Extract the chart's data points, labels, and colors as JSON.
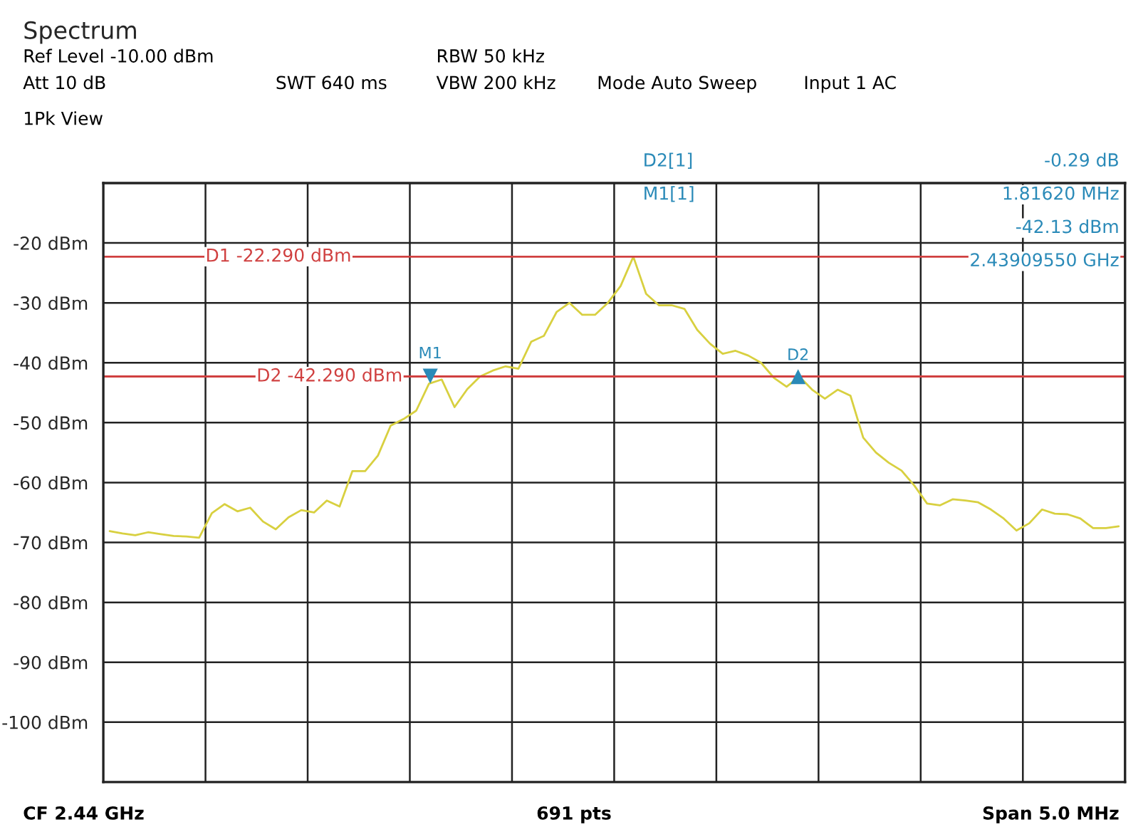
{
  "chart_data": {
    "type": "line",
    "title": "Spectrum",
    "annotations": [
      "Ref Level -10.00 dBm",
      "Att 10 dB",
      "SWT 640 ms",
      "RBW 50 kHz",
      "VBW 200 kHz",
      "Mode Auto Sweep",
      "Input 1 AC",
      "1Pk View",
      {
        "text": "M1",
        "y": -42.13
      },
      {
        "text": "D2",
        "y": -42.42
      },
      "D2[1]",
      "-0.29 dB",
      "1.81620 MHz",
      "M1[1]",
      "-42.13 dBm",
      "2.43909550 GHz",
      "CF 2.44 GHz",
      "691 pts",
      "Span 5.0 MHz"
    ],
    "categories": [
      null,
      null,
      null,
      null,
      null,
      null,
      null,
      null,
      null,
      null,
      null,
      null,
      null,
      null,
      null,
      null,
      null,
      null,
      null,
      null,
      null,
      null,
      null,
      null,
      null,
      null,
      null,
      null,
      null,
      null,
      null,
      null,
      null,
      null,
      null,
      null,
      null,
      null,
      null,
      null,
      null,
      null,
      null,
      null,
      null,
      null,
      null,
      null,
      null,
      null,
      null,
      null,
      null,
      null,
      null,
      null,
      null,
      null,
      null,
      null,
      null,
      null,
      null,
      null,
      null,
      null,
      null,
      null,
      null,
      null,
      null,
      null,
      null,
      null,
      null,
      null,
      null,
      null,
      null,
      null
    ],
    "series": [
      {
        "color": "#d8d040",
        "values": [
          -68.1,
          -68.5,
          -68.8,
          -68.3,
          -68.6,
          -68.9,
          -69.0,
          -69.2,
          -65.1,
          -63.6,
          -64.8,
          -64.2,
          -66.5,
          -67.8,
          -65.8,
          -64.6,
          -65.0,
          -63.0,
          -64.0,
          -58.1,
          -58.1,
          -55.5,
          -50.5,
          -49.4,
          -48.0,
          -43.5,
          -42.8,
          -47.4,
          -44.4,
          -42.3,
          -41.3,
          -40.6,
          -41.0,
          -36.5,
          -35.5,
          -31.5,
          -30.0,
          -32.0,
          -32.0,
          -30.0,
          -27.2,
          -22.3,
          -28.5,
          -30.4,
          -30.4,
          -31.0,
          -34.5,
          -36.8,
          -38.5,
          -38.0,
          -38.8,
          -40.0,
          -42.5,
          -44.0,
          -42.3,
          -44.5,
          -46.0,
          -44.5,
          -45.5,
          -52.5,
          -55.0,
          -56.7,
          -58.0,
          -60.5,
          -63.5,
          -63.8,
          -62.8,
          -63.0,
          -63.3,
          -64.5,
          -66.0,
          -68.0,
          -66.8,
          -64.5,
          -65.2,
          -65.3,
          -66.0,
          -67.6,
          -67.6,
          -67.3
        ]
      }
    ],
    "ylim": [
      -110,
      -10
    ],
    "yticks": [
      {
        "value": -100,
        "label": "-100 dBm"
      },
      {
        "value": -90,
        "label": "-90 dBm"
      },
      {
        "value": -80,
        "label": "-80 dBm"
      },
      {
        "value": -70,
        "label": "-70 dBm"
      },
      {
        "value": -60,
        "label": "-60 dBm"
      },
      {
        "value": -50,
        "label": "-50 dBm"
      },
      {
        "value": -40,
        "label": "-40 dBm"
      },
      {
        "value": -30,
        "label": "-30 dBm"
      },
      {
        "value": -20,
        "label": "-20 dBm"
      }
    ],
    "ref_lines": [
      {
        "axis": "y",
        "value": -22.29,
        "label": "D1 -22.290 dBm",
        "color": "#d04040"
      },
      {
        "axis": "y",
        "value": -42.29,
        "label": "D2 -42.290 dBm",
        "color": "#d04040"
      }
    ],
    "grid": true,
    "tick_labels": "y",
    "line_style": "solid",
    "marker": "none"
  }
}
